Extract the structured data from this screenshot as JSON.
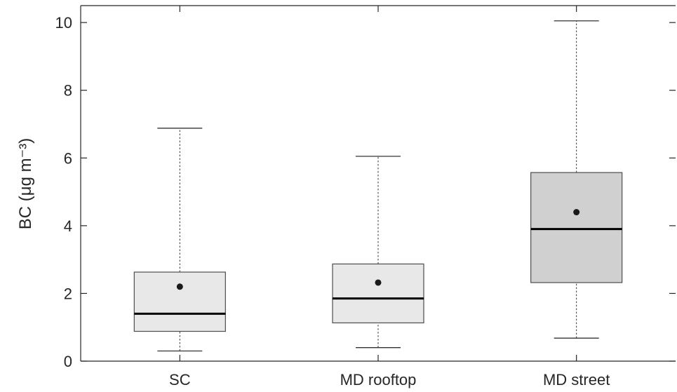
{
  "chart_data": {
    "type": "box",
    "ylabel": "BC",
    "ylabel_unit": "(μg m⁻³)",
    "ylim": [
      0,
      10.5
    ],
    "yticks": [
      0,
      2,
      4,
      6,
      8,
      10
    ],
    "y_tick_labels": [
      "0",
      "2",
      "4",
      "6",
      "8",
      "10"
    ],
    "grid": false,
    "categories": [
      "SC",
      "MD rooftop",
      "MD street"
    ],
    "boxes": [
      {
        "category": "SC",
        "whisker_low": 0.3,
        "q1": 0.88,
        "median": 1.4,
        "q3": 2.63,
        "whisker_high": 6.88,
        "mean": 2.2,
        "fill": "#e8e8e8"
      },
      {
        "category": "MD rooftop",
        "whisker_low": 0.4,
        "q1": 1.13,
        "median": 1.85,
        "q3": 2.87,
        "whisker_high": 6.05,
        "mean": 2.32,
        "fill": "#e8e8e8"
      },
      {
        "category": "MD street",
        "whisker_low": 0.68,
        "q1": 2.32,
        "median": 3.9,
        "q3": 5.57,
        "whisker_high": 10.05,
        "mean": 4.4,
        "fill": "#d0d0d0"
      }
    ],
    "colors": {
      "axis": "#262626",
      "box_edge": "#4d4d4d",
      "median": "#000000",
      "mean": "#1a1a1a"
    }
  }
}
